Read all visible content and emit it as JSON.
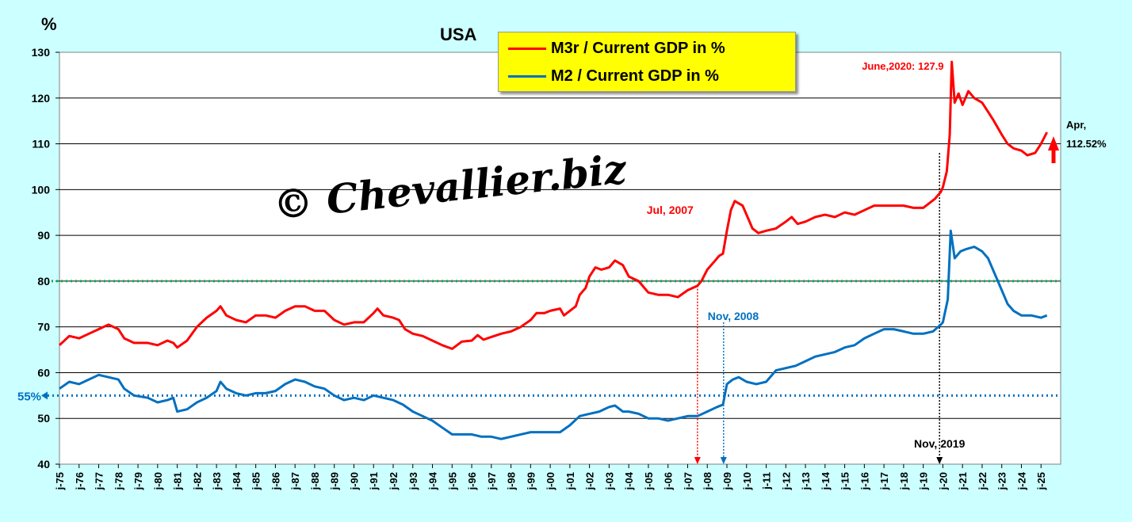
{
  "chart_data": {
    "type": "line",
    "title": "USA",
    "ylabel": "%",
    "ylim": [
      40,
      130
    ],
    "yticks": [
      40,
      50,
      60,
      70,
      80,
      90,
      100,
      110,
      120,
      130
    ],
    "x_tick_labels": [
      "j-75",
      "j-76",
      "j-77",
      "j-78",
      "j-79",
      "j-80",
      "j-81",
      "j-82",
      "j-83",
      "j-84",
      "j-85",
      "j-86",
      "j-87",
      "j-88",
      "j-89",
      "j-90",
      "j-91",
      "j-92",
      "j-93",
      "j-94",
      "j-95",
      "j-96",
      "j-97",
      "j-98",
      "j-99",
      "j-00",
      "j-01",
      "j-02",
      "j-03",
      "j-04",
      "j-05",
      "j-06",
      "j-07",
      "j-08",
      "j-09",
      "j-10",
      "j-11",
      "j-12",
      "j-13",
      "j-14",
      "j-15",
      "j-16",
      "j-17",
      "j-18",
      "j-19",
      "j-20",
      "j-21",
      "j-22",
      "j-23",
      "j-24",
      "j-25"
    ],
    "grid": "horizontal",
    "legend_position": "top-center",
    "series": [
      {
        "name": "M3r / Current GDP in %",
        "color": "#ff0000",
        "points": [
          [
            1975.0,
            66
          ],
          [
            1975.5,
            68
          ],
          [
            1976.0,
            67.5
          ],
          [
            1976.5,
            68.5
          ],
          [
            1977.0,
            69.5
          ],
          [
            1977.5,
            70.5
          ],
          [
            1978.0,
            69.5
          ],
          [
            1978.3,
            67.5
          ],
          [
            1978.8,
            66.5
          ],
          [
            1979.5,
            66.5
          ],
          [
            1980.0,
            66
          ],
          [
            1980.5,
            67
          ],
          [
            1980.8,
            66.5
          ],
          [
            1981.0,
            65.5
          ],
          [
            1981.5,
            67
          ],
          [
            1982.0,
            70
          ],
          [
            1982.5,
            72
          ],
          [
            1983.0,
            73.5
          ],
          [
            1983.2,
            74.5
          ],
          [
            1983.5,
            72.5
          ],
          [
            1984.0,
            71.5
          ],
          [
            1984.5,
            71
          ],
          [
            1985.0,
            72.5
          ],
          [
            1985.5,
            72.5
          ],
          [
            1986.0,
            72
          ],
          [
            1986.5,
            73.5
          ],
          [
            1987.0,
            74.5
          ],
          [
            1987.5,
            74.5
          ],
          [
            1988.0,
            73.5
          ],
          [
            1988.5,
            73.5
          ],
          [
            1989.0,
            71.5
          ],
          [
            1989.5,
            70.5
          ],
          [
            1990.0,
            71
          ],
          [
            1990.5,
            71
          ],
          [
            1991.0,
            73
          ],
          [
            1991.2,
            74
          ],
          [
            1991.5,
            72.5
          ],
          [
            1992.0,
            72
          ],
          [
            1992.3,
            71.5
          ],
          [
            1992.6,
            69.5
          ],
          [
            1993.0,
            68.5
          ],
          [
            1993.5,
            68
          ],
          [
            1994.0,
            67
          ],
          [
            1994.5,
            66
          ],
          [
            1995.0,
            65.2
          ],
          [
            1995.5,
            66.8
          ],
          [
            1996.0,
            67
          ],
          [
            1996.3,
            68.2
          ],
          [
            1996.6,
            67.2
          ],
          [
            1997.0,
            67.8
          ],
          [
            1997.5,
            68.5
          ],
          [
            1998.0,
            69
          ],
          [
            1998.5,
            70
          ],
          [
            1999.0,
            71.5
          ],
          [
            1999.3,
            73
          ],
          [
            1999.7,
            73
          ],
          [
            2000.0,
            73.5
          ],
          [
            2000.5,
            74
          ],
          [
            2000.7,
            72.5
          ],
          [
            2001.0,
            73.5
          ],
          [
            2001.3,
            74.5
          ],
          [
            2001.5,
            77
          ],
          [
            2001.8,
            78.5
          ],
          [
            2002.0,
            81
          ],
          [
            2002.3,
            83
          ],
          [
            2002.6,
            82.5
          ],
          [
            2003.0,
            83
          ],
          [
            2003.3,
            84.5
          ],
          [
            2003.7,
            83.5
          ],
          [
            2004.0,
            81
          ],
          [
            2004.5,
            80
          ],
          [
            2004.8,
            78.5
          ],
          [
            2005.0,
            77.5
          ],
          [
            2005.5,
            77
          ],
          [
            2006.0,
            77
          ],
          [
            2006.5,
            76.5
          ],
          [
            2007.0,
            78
          ],
          [
            2007.5,
            79
          ],
          [
            2007.7,
            80
          ],
          [
            2008.0,
            82.5
          ],
          [
            2008.3,
            84
          ],
          [
            2008.6,
            85.5
          ],
          [
            2008.8,
            86
          ],
          [
            2009.0,
            91
          ],
          [
            2009.2,
            95.5
          ],
          [
            2009.4,
            97.5
          ],
          [
            2009.8,
            96.5
          ],
          [
            2010.0,
            94.5
          ],
          [
            2010.3,
            91.5
          ],
          [
            2010.6,
            90.5
          ],
          [
            2011.0,
            91
          ],
          [
            2011.5,
            91.5
          ],
          [
            2012.0,
            93
          ],
          [
            2012.3,
            94
          ],
          [
            2012.6,
            92.5
          ],
          [
            2013.0,
            93
          ],
          [
            2013.5,
            94
          ],
          [
            2014.0,
            94.5
          ],
          [
            2014.5,
            94
          ],
          [
            2015.0,
            95
          ],
          [
            2015.5,
            94.5
          ],
          [
            2016.0,
            95.5
          ],
          [
            2016.5,
            96.5
          ],
          [
            2017.0,
            96.5
          ],
          [
            2017.5,
            96.5
          ],
          [
            2018.0,
            96.5
          ],
          [
            2018.5,
            96
          ],
          [
            2019.0,
            96
          ],
          [
            2019.3,
            97
          ],
          [
            2019.6,
            98
          ],
          [
            2019.9,
            99.5
          ],
          [
            2020.0,
            100.5
          ],
          [
            2020.2,
            104
          ],
          [
            2020.35,
            112
          ],
          [
            2020.45,
            127.9
          ],
          [
            2020.6,
            119
          ],
          [
            2020.8,
            121
          ],
          [
            2021.0,
            118.5
          ],
          [
            2021.3,
            121.5
          ],
          [
            2021.6,
            120
          ],
          [
            2022.0,
            119
          ],
          [
            2022.3,
            117
          ],
          [
            2022.6,
            115
          ],
          [
            2023.0,
            112
          ],
          [
            2023.3,
            110
          ],
          [
            2023.6,
            109
          ],
          [
            2024.0,
            108.5
          ],
          [
            2024.3,
            107.5
          ],
          [
            2024.7,
            108
          ],
          [
            2025.0,
            110
          ],
          [
            2025.3,
            112.52
          ]
        ]
      },
      {
        "name": "M2 / Current GDP in %",
        "color": "#0070c0",
        "points": [
          [
            1975.0,
            56.5
          ],
          [
            1975.5,
            58
          ],
          [
            1976.0,
            57.5
          ],
          [
            1976.5,
            58.5
          ],
          [
            1977.0,
            59.5
          ],
          [
            1977.5,
            59
          ],
          [
            1978.0,
            58.5
          ],
          [
            1978.3,
            56.5
          ],
          [
            1978.8,
            55
          ],
          [
            1979.5,
            54.5
          ],
          [
            1980.0,
            53.5
          ],
          [
            1980.5,
            54
          ],
          [
            1980.8,
            54.5
          ],
          [
            1981.0,
            51.5
          ],
          [
            1981.5,
            52
          ],
          [
            1982.0,
            53.5
          ],
          [
            1982.5,
            54.5
          ],
          [
            1983.0,
            56
          ],
          [
            1983.2,
            58
          ],
          [
            1983.5,
            56.5
          ],
          [
            1984.0,
            55.5
          ],
          [
            1984.5,
            55
          ],
          [
            1985.0,
            55.5
          ],
          [
            1985.5,
            55.5
          ],
          [
            1986.0,
            56
          ],
          [
            1986.5,
            57.5
          ],
          [
            1987.0,
            58.5
          ],
          [
            1987.5,
            58
          ],
          [
            1988.0,
            57
          ],
          [
            1988.5,
            56.5
          ],
          [
            1989.0,
            55
          ],
          [
            1989.5,
            54
          ],
          [
            1990.0,
            54.5
          ],
          [
            1990.5,
            54
          ],
          [
            1991.0,
            55
          ],
          [
            1991.5,
            54.5
          ],
          [
            1992.0,
            54
          ],
          [
            1992.5,
            53
          ],
          [
            1993.0,
            51.5
          ],
          [
            1993.5,
            50.5
          ],
          [
            1994.0,
            49.5
          ],
          [
            1994.5,
            48
          ],
          [
            1995.0,
            46.5
          ],
          [
            1995.5,
            46.5
          ],
          [
            1996.0,
            46.5
          ],
          [
            1996.5,
            46
          ],
          [
            1997.0,
            46
          ],
          [
            1997.5,
            45.5
          ],
          [
            1998.0,
            46
          ],
          [
            1998.5,
            46.5
          ],
          [
            1999.0,
            47
          ],
          [
            1999.5,
            47
          ],
          [
            2000.0,
            47
          ],
          [
            2000.5,
            47
          ],
          [
            2001.0,
            48.5
          ],
          [
            2001.5,
            50.5
          ],
          [
            2002.0,
            51
          ],
          [
            2002.5,
            51.5
          ],
          [
            2003.0,
            52.5
          ],
          [
            2003.3,
            52.8
          ],
          [
            2003.7,
            51.5
          ],
          [
            2004.0,
            51.5
          ],
          [
            2004.5,
            51
          ],
          [
            2005.0,
            50
          ],
          [
            2005.5,
            50
          ],
          [
            2006.0,
            49.5
          ],
          [
            2006.5,
            50
          ],
          [
            2007.0,
            50.5
          ],
          [
            2007.5,
            50.5
          ],
          [
            2008.0,
            51.5
          ],
          [
            2008.5,
            52.5
          ],
          [
            2008.8,
            53
          ],
          [
            2009.0,
            57.5
          ],
          [
            2009.3,
            58.5
          ],
          [
            2009.6,
            59
          ],
          [
            2010.0,
            58
          ],
          [
            2010.5,
            57.5
          ],
          [
            2011.0,
            58
          ],
          [
            2011.5,
            60.5
          ],
          [
            2012.0,
            61
          ],
          [
            2012.5,
            61.5
          ],
          [
            2013.0,
            62.5
          ],
          [
            2013.5,
            63.5
          ],
          [
            2014.0,
            64
          ],
          [
            2014.5,
            64.5
          ],
          [
            2015.0,
            65.5
          ],
          [
            2015.5,
            66
          ],
          [
            2016.0,
            67.5
          ],
          [
            2016.5,
            68.5
          ],
          [
            2017.0,
            69.5
          ],
          [
            2017.5,
            69.5
          ],
          [
            2018.0,
            69
          ],
          [
            2018.5,
            68.5
          ],
          [
            2019.0,
            68.5
          ],
          [
            2019.5,
            69
          ],
          [
            2019.9,
            70.5
          ],
          [
            2020.0,
            71
          ],
          [
            2020.25,
            76
          ],
          [
            2020.4,
            91
          ],
          [
            2020.6,
            85
          ],
          [
            2020.9,
            86.5
          ],
          [
            2021.2,
            87
          ],
          [
            2021.6,
            87.5
          ],
          [
            2022.0,
            86.5
          ],
          [
            2022.3,
            85
          ],
          [
            2022.6,
            82
          ],
          [
            2023.0,
            78
          ],
          [
            2023.3,
            75
          ],
          [
            2023.6,
            73.5
          ],
          [
            2024.0,
            72.5
          ],
          [
            2024.5,
            72.5
          ],
          [
            2025.0,
            72
          ],
          [
            2025.3,
            72.5
          ]
        ]
      }
    ],
    "reference_lines": [
      {
        "value": 80,
        "color": "#00b050",
        "style": "dotted"
      },
      {
        "value": 55,
        "color": "#0070c0",
        "style": "dotted",
        "label": "55%"
      }
    ],
    "annotations": [
      {
        "text": "June,2020: 127.9",
        "color": "#ff0000",
        "x": 2020.45,
        "y": 127.9
      },
      {
        "text": "Apr,",
        "color": "#000000",
        "x": 2025.3,
        "y": 112.52
      },
      {
        "text": "112.52%",
        "color": "#000000",
        "x": 2025.3,
        "y": 112.52
      },
      {
        "text": "Jul, 2007",
        "color": "#ff0000",
        "x": 2007.5,
        "y": 40
      },
      {
        "text": "Nov, 2008",
        "color": "#0070c0",
        "x": 2008.83,
        "y": 40
      },
      {
        "text": "Nov, 2019",
        "color": "#000000",
        "x": 2019.83,
        "y": 40
      }
    ]
  },
  "watermark": "© Chevallier.biz"
}
